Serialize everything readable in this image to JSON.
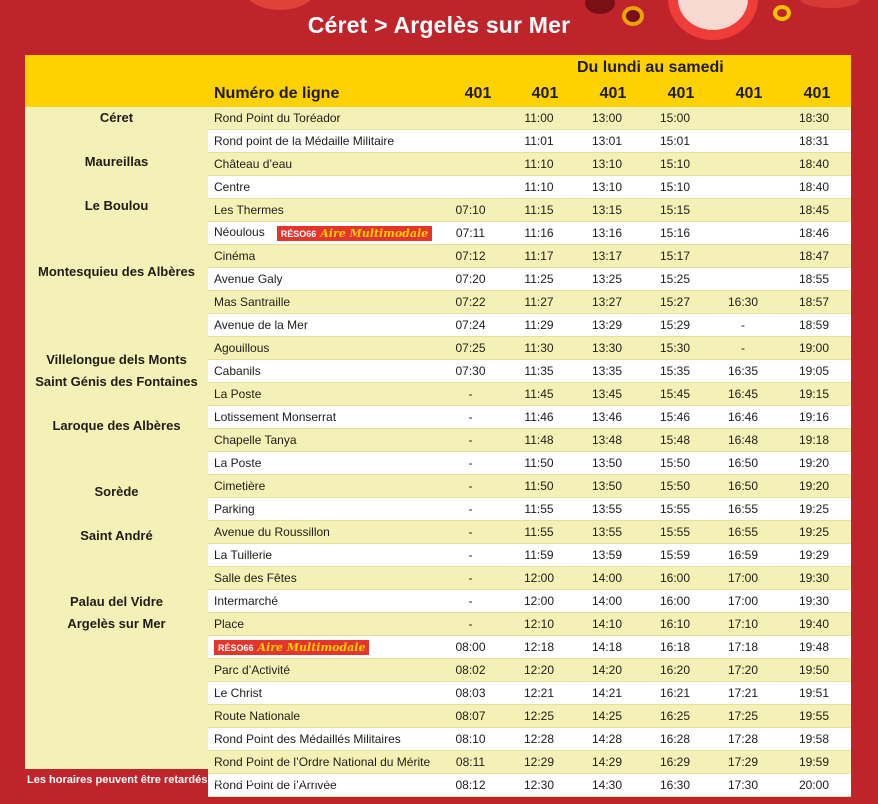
{
  "title": "Céret > Argelès sur Mer",
  "header": {
    "days": "Du lundi au samedi",
    "line_label": "Numéro de ligne",
    "lines": [
      "401",
      "401",
      "401",
      "401",
      "401",
      "401"
    ]
  },
  "colors": {
    "background": "#c0242b",
    "header": "#fed100",
    "band": "#f4f1b6",
    "badge": "#e5342a"
  },
  "badge": {
    "brand": "RÉSO66",
    "label": "Aire Multimodale"
  },
  "communes": [
    {
      "name": "Céret",
      "row": 0
    },
    {
      "name": "Maureillas",
      "row": 2
    },
    {
      "name": "Le Boulou",
      "row": 4
    },
    {
      "name": "Montesquieu des Albères",
      "row": 7
    },
    {
      "name": "Villelongue dels Monts",
      "row": 11
    },
    {
      "name": "Saint Génis des Fontaines",
      "row": 12
    },
    {
      "name": "Laroque des Albères",
      "row": 14
    },
    {
      "name": "Sorède",
      "row": 17
    },
    {
      "name": "Saint André",
      "row": 19
    },
    {
      "name": "Palau del Vidre",
      "row": 22
    },
    {
      "name": "Argelès sur Mer",
      "row": 23
    }
  ],
  "rows": [
    {
      "stop": "Rond Point du Toréador",
      "times": [
        "",
        "11:00",
        "13:00",
        "15:00",
        "",
        "18:30"
      ]
    },
    {
      "stop": "Rond point de la Médaille Militaire",
      "times": [
        "",
        "11:01",
        "13:01",
        "15:01",
        "",
        "18:31"
      ]
    },
    {
      "stop": "Château d’eau",
      "times": [
        "",
        "11:10",
        "13:10",
        "15:10",
        "",
        "18:40"
      ]
    },
    {
      "stop": "Centre",
      "times": [
        "",
        "11:10",
        "13:10",
        "15:10",
        "",
        "18:40"
      ]
    },
    {
      "stop": "Les Thermes",
      "times": [
        "07:10",
        "11:15",
        "13:15",
        "15:15",
        "",
        "18:45"
      ]
    },
    {
      "stop": "Néoulous",
      "badge": true,
      "times": [
        "07:11",
        "11:16",
        "13:16",
        "15:16",
        "",
        "18:46"
      ]
    },
    {
      "stop": "Cinéma",
      "times": [
        "07:12",
        "11:17",
        "13:17",
        "15:17",
        "",
        "18:47"
      ]
    },
    {
      "stop": "Avenue Galy",
      "times": [
        "07:20",
        "11:25",
        "13:25",
        "15:25",
        "",
        "18:55"
      ]
    },
    {
      "stop": "Mas Santraille",
      "times": [
        "07:22",
        "11:27",
        "13:27",
        "15:27",
        "16:30",
        "18:57"
      ]
    },
    {
      "stop": "Avenue de la Mer",
      "times": [
        "07:24",
        "11:29",
        "13:29",
        "15:29",
        "-",
        "18:59"
      ]
    },
    {
      "stop": "Agouillous",
      "times": [
        "07:25",
        "11:30",
        "13:30",
        "15:30",
        "-",
        "19:00"
      ]
    },
    {
      "stop": "Cabanils",
      "times": [
        "07:30",
        "11:35",
        "13:35",
        "15:35",
        "16:35",
        "19:05"
      ]
    },
    {
      "stop": "La Poste",
      "times": [
        "-",
        "11:45",
        "13:45",
        "15:45",
        "16:45",
        "19:15"
      ]
    },
    {
      "stop": "Lotissement Monserrat",
      "times": [
        "-",
        "11:46",
        "13:46",
        "15:46",
        "16:46",
        "19:16"
      ]
    },
    {
      "stop": "Chapelle Tanya",
      "times": [
        "-",
        "11:48",
        "13:48",
        "15:48",
        "16:48",
        "19:18"
      ]
    },
    {
      "stop": "La Poste",
      "times": [
        "-",
        "11:50",
        "13:50",
        "15:50",
        "16:50",
        "19:20"
      ]
    },
    {
      "stop": "Cimetière",
      "times": [
        "-",
        "11:50",
        "13:50",
        "15:50",
        "16:50",
        "19:20"
      ]
    },
    {
      "stop": "Parking",
      "times": [
        "-",
        "11:55",
        "13:55",
        "15:55",
        "16:55",
        "19:25"
      ]
    },
    {
      "stop": "Avenue du Roussillon",
      "times": [
        "-",
        "11:55",
        "13:55",
        "15:55",
        "16:55",
        "19:25"
      ]
    },
    {
      "stop": "La Tuillerie",
      "times": [
        "-",
        "11:59",
        "13:59",
        "15:59",
        "16:59",
        "19:29"
      ]
    },
    {
      "stop": "Salle des Fêtes",
      "times": [
        "-",
        "12:00",
        "14:00",
        "16:00",
        "17:00",
        "19:30"
      ]
    },
    {
      "stop": "Intermarché",
      "times": [
        "-",
        "12:00",
        "14:00",
        "16:00",
        "17:00",
        "19:30"
      ]
    },
    {
      "stop": "Place",
      "times": [
        "-",
        "12:10",
        "14:10",
        "16:10",
        "17:10",
        "19:40"
      ]
    },
    {
      "stop": "",
      "badge": true,
      "times": [
        "08:00",
        "12:18",
        "14:18",
        "16:18",
        "17:18",
        "19:48"
      ]
    },
    {
      "stop": "Parc d’Activité",
      "times": [
        "08:02",
        "12:20",
        "14:20",
        "16:20",
        "17:20",
        "19:50"
      ]
    },
    {
      "stop": "Le Christ",
      "times": [
        "08:03",
        "12:21",
        "14:21",
        "16:21",
        "17:21",
        "19:51"
      ]
    },
    {
      "stop": "Route Nationale",
      "times": [
        "08:07",
        "12:25",
        "14:25",
        "16:25",
        "17:25",
        "19:55"
      ]
    },
    {
      "stop": "Rond Point des Médaillés Militaires",
      "times": [
        "08:10",
        "12:28",
        "14:28",
        "16:28",
        "17:28",
        "19:58"
      ]
    },
    {
      "stop": "Rond Point de l’Ordre National du Mérite",
      "times": [
        "08:11",
        "12:29",
        "14:29",
        "16:29",
        "17:29",
        "19:59"
      ]
    },
    {
      "stop": "Rond Point de l’Arrivée",
      "times": [
        "08:12",
        "12:30",
        "14:30",
        "16:30",
        "17:30",
        "20:00"
      ]
    }
  ],
  "footnote": "Les horaires peuvent être retardés en cas de forte circulation"
}
